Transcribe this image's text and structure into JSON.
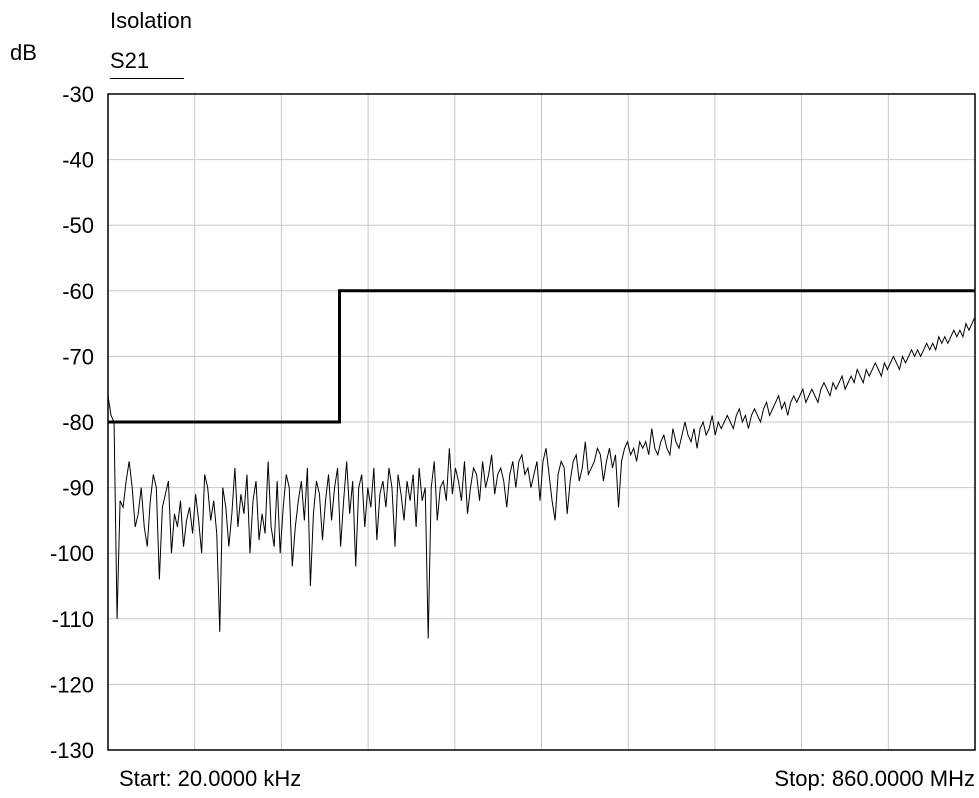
{
  "chart_data": {
    "type": "line",
    "title": "Isolation",
    "ylabel": "dB",
    "ylim": [
      -130,
      -30
    ],
    "yticks": [
      "-30",
      "-40",
      "-50",
      "-60",
      "-70",
      "-80",
      "-90",
      "-100",
      "-110",
      "-120",
      "-130"
    ],
    "x_grid_divisions": 10,
    "grid": true,
    "start_label": "Start: 20.0000 kHz",
    "stop_label": "Stop: 860.0000 MHz",
    "xlim_mhz": [
      0.02,
      860.0
    ],
    "series": [
      {
        "name": "S21",
        "x_fraction_step": 0.003333,
        "values": [
          -76,
          -79,
          -80,
          -110,
          -92,
          -93,
          -89,
          -86,
          -90,
          -96,
          -94,
          -90,
          -96,
          -99,
          -92,
          -88,
          -90,
          -104,
          -93,
          -91,
          -89,
          -100,
          -94,
          -96,
          -92,
          -99,
          -95,
          -93,
          -97,
          -91,
          -95,
          -100,
          -88,
          -90,
          -95,
          -92,
          -97,
          -112,
          -90,
          -93,
          -99,
          -94,
          -87,
          -96,
          -91,
          -94,
          -88,
          -100,
          -92,
          -89,
          -98,
          -94,
          -97,
          -86,
          -96,
          -99,
          -89,
          -100,
          -93,
          -88,
          -90,
          -102,
          -96,
          -92,
          -89,
          -95,
          -87,
          -105,
          -94,
          -89,
          -91,
          -98,
          -92,
          -88,
          -95,
          -90,
          -87,
          -99,
          -92,
          -86,
          -94,
          -89,
          -102,
          -90,
          -88,
          -96,
          -90,
          -93,
          -87,
          -98,
          -91,
          -89,
          -93,
          -87,
          -90,
          -99,
          -88,
          -91,
          -95,
          -89,
          -92,
          -88,
          -96,
          -87,
          -92,
          -90,
          -113,
          -90,
          -86,
          -95,
          -90,
          -89,
          -92,
          -84,
          -91,
          -87,
          -89,
          -92,
          -86,
          -94,
          -90,
          -87,
          -88,
          -92,
          -86,
          -90,
          -88,
          -85,
          -91,
          -88,
          -87,
          -89,
          -93,
          -88,
          -86,
          -90,
          -86,
          -85,
          -88,
          -87,
          -90,
          -88,
          -86,
          -92,
          -86,
          -84,
          -88,
          -92,
          -95,
          -88,
          -86,
          -87,
          -94,
          -89,
          -86,
          -85,
          -89,
          -87,
          -83,
          -88,
          -87,
          -86,
          -84,
          -85,
          -89,
          -86,
          -84,
          -87,
          -85,
          -93,
          -86,
          -84,
          -83,
          -85,
          -84,
          -86,
          -83,
          -84,
          -83,
          -85,
          -81,
          -84,
          -85,
          -83,
          -82,
          -84,
          -85,
          -81,
          -83,
          -84,
          -82,
          -80,
          -82,
          -83,
          -81,
          -84,
          -81,
          -80,
          -82,
          -81,
          -79,
          -82,
          -80,
          -81,
          -80,
          -79,
          -80,
          -81,
          -79,
          -78,
          -80,
          -79,
          -81,
          -79,
          -78,
          -79,
          -80,
          -78,
          -77,
          -79,
          -78,
          -77,
          -76,
          -78,
          -77,
          -79,
          -77,
          -76,
          -77,
          -76,
          -75,
          -77,
          -76,
          -75,
          -76,
          -77,
          -75,
          -74,
          -75,
          -76,
          -74,
          -75,
          -74,
          -73,
          -75,
          -74,
          -73,
          -74,
          -72,
          -73,
          -74,
          -72,
          -73,
          -72,
          -71,
          -72,
          -73,
          -71,
          -72,
          -71,
          -70,
          -71,
          -72,
          -70,
          -71,
          -70,
          -69,
          -70,
          -69,
          -70,
          -69,
          -68,
          -69,
          -68,
          -69,
          -67,
          -68,
          -67,
          -68,
          -67,
          -66,
          -67,
          -66,
          -67,
          -65,
          -66,
          -65,
          -64
        ]
      }
    ],
    "limit_line": {
      "segments": [
        {
          "y": -80,
          "x_fraction": [
            0,
            0.267
          ]
        },
        {
          "y": -60,
          "x_fraction": [
            0.267,
            1
          ]
        }
      ]
    }
  }
}
